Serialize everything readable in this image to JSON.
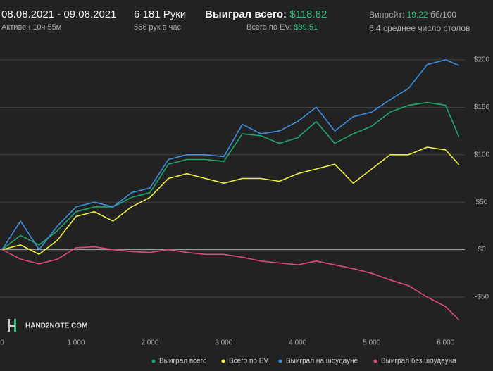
{
  "header": {
    "date_range": "08.08.2021 - 09.08.2021",
    "active": "Активен 10ч 55м",
    "hands": "6 181 Руки",
    "hands_per_hour": "566 рук в час",
    "won_label": "Выиграл всего:",
    "won_value": "$118.82",
    "ev_label": "Всего по EV:",
    "ev_value": "$89.51",
    "winrate_label": "Винрейт:",
    "winrate_value": "19.22",
    "winrate_unit": "бб/100",
    "tables": "6.4 среднее число столов",
    "logo": "HAND2NOTE.COM"
  },
  "chart_data": {
    "type": "line",
    "x": [
      0,
      250,
      500,
      750,
      1000,
      1250,
      1500,
      1750,
      2000,
      2250,
      2500,
      2750,
      3000,
      3250,
      3500,
      3750,
      4000,
      4250,
      4500,
      4750,
      5000,
      5250,
      5500,
      5750,
      6000,
      6181
    ],
    "series": [
      {
        "name": "Выиграл всего",
        "color": "#1fa86b",
        "values": [
          0,
          15,
          5,
          20,
          40,
          45,
          45,
          55,
          60,
          90,
          95,
          95,
          93,
          122,
          120,
          112,
          118,
          135,
          112,
          122,
          130,
          145,
          152,
          155,
          152,
          118.82
        ]
      },
      {
        "name": "Всего по EV",
        "color": "#f0f03c",
        "values": [
          0,
          5,
          -5,
          10,
          35,
          40,
          30,
          45,
          55,
          75,
          80,
          75,
          70,
          75,
          75,
          72,
          80,
          85,
          90,
          70,
          85,
          100,
          100,
          108,
          105,
          89.51
        ]
      },
      {
        "name": "Выиграл на шоудауне",
        "color": "#3d8fe0",
        "values": [
          0,
          30,
          0,
          25,
          45,
          50,
          45,
          60,
          65,
          95,
          100,
          100,
          98,
          132,
          122,
          125,
          135,
          150,
          125,
          140,
          145,
          158,
          170,
          195,
          200,
          194
        ]
      },
      {
        "name": "Выиграл без шоудауна",
        "color": "#e0497a",
        "values": [
          0,
          -10,
          -15,
          -10,
          2,
          3,
          0,
          -2,
          -3,
          0,
          -3,
          -5,
          -5,
          -8,
          -12,
          -14,
          -16,
          -12,
          -16,
          -20,
          -25,
          -32,
          -38,
          -50,
          -60,
          -74
        ]
      }
    ],
    "xlim": [
      0,
      6260
    ],
    "xticks": [
      0,
      {
        "value": 1000,
        "label": "1 000"
      },
      {
        "value": 2000,
        "label": "2 000"
      },
      {
        "value": 3000,
        "label": "3 000"
      },
      {
        "value": 4000,
        "label": "4 000"
      },
      {
        "value": 5000,
        "label": "5 000"
      },
      {
        "value": 6000,
        "label": "6 000"
      }
    ],
    "ylim": [
      -93,
      217
    ],
    "yticks": [
      {
        "value": -50,
        "label": "-$50"
      },
      {
        "value": 0,
        "label": "$0"
      },
      {
        "value": 50,
        "label": "$50"
      },
      {
        "value": 100,
        "label": "$100"
      },
      {
        "value": 150,
        "label": "$150"
      },
      {
        "value": 200,
        "label": "$200"
      }
    ],
    "grid": true
  }
}
